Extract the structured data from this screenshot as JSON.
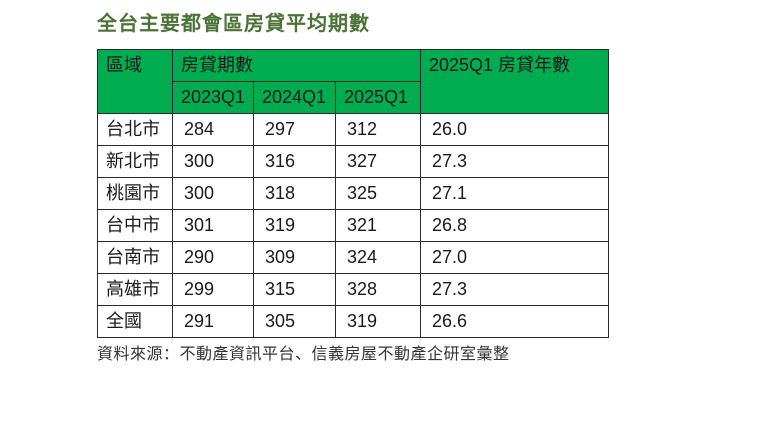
{
  "title": "全台主要都會區房貸平均期數",
  "source_note": "資料來源：不動產資訊平台、信義房屋不動產企研室彙整",
  "table": {
    "header": {
      "region": "區域",
      "loan_terms_group": "房貸期數",
      "loan_years": "2025Q1 房貸年數",
      "quarters": [
        "2023Q1",
        "2024Q1",
        "2025Q1"
      ]
    },
    "rows": [
      {
        "region": "台北市",
        "q1_2023": "284",
        "q1_2024": "297",
        "q1_2025": "312",
        "years": "26.0"
      },
      {
        "region": "新北市",
        "q1_2023": "300",
        "q1_2024": "316",
        "q1_2025": "327",
        "years": "27.3"
      },
      {
        "region": "桃園市",
        "q1_2023": "300",
        "q1_2024": "318",
        "q1_2025": "325",
        "years": "27.1"
      },
      {
        "region": "台中市",
        "q1_2023": "301",
        "q1_2024": "319",
        "q1_2025": "321",
        "years": "26.8"
      },
      {
        "region": "台南市",
        "q1_2023": "290",
        "q1_2024": "309",
        "q1_2025": "324",
        "years": "27.0"
      },
      {
        "region": "高雄市",
        "q1_2023": "299",
        "q1_2024": "315",
        "q1_2025": "328",
        "years": "27.3"
      },
      {
        "region": "全國",
        "q1_2023": "291",
        "q1_2024": "305",
        "q1_2025": "319",
        "years": "26.6"
      }
    ]
  },
  "colors": {
    "header_green": "#00AC50",
    "title_green": "#4C7337",
    "border": "#2B2B2B",
    "text": "#1A1A1A"
  },
  "chart_data": {
    "type": "table",
    "title": "全台主要都會區房貸平均期數",
    "columns": [
      "區域",
      "房貸期數 2023Q1",
      "房貸期數 2024Q1",
      "房貸期數 2025Q1",
      "2025Q1 房貸年數"
    ],
    "rows": [
      [
        "台北市",
        284,
        297,
        312,
        26.0
      ],
      [
        "新北市",
        300,
        316,
        327,
        27.3
      ],
      [
        "桃園市",
        300,
        318,
        325,
        27.1
      ],
      [
        "台中市",
        301,
        319,
        321,
        26.8
      ],
      [
        "台南市",
        290,
        309,
        324,
        27.0
      ],
      [
        "高雄市",
        299,
        315,
        328,
        27.3
      ],
      [
        "全國",
        291,
        305,
        319,
        26.6
      ]
    ],
    "source": "資料來源：不動產資訊平台、信義房屋不動產企研室彙整"
  }
}
